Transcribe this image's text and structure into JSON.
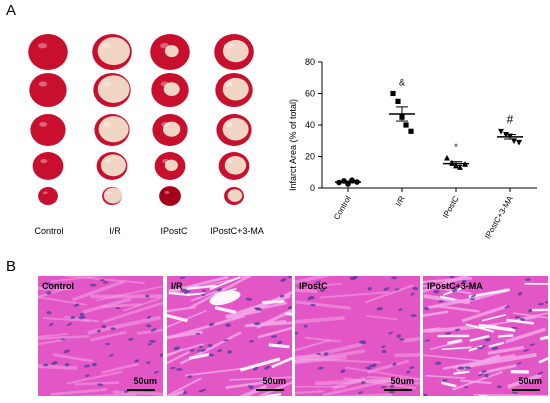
{
  "panels": {
    "a_label": "A",
    "b_label": "B"
  },
  "heart_sections": {
    "groups": [
      "Control",
      "I/R",
      "IPostC",
      "IPostC+3-MA"
    ],
    "rows": 5,
    "colors": {
      "healthy_red": "#c8102e",
      "infarct_pale": "#f3e6d2",
      "background": "#ffffff"
    }
  },
  "chart_data": {
    "type": "scatter",
    "ylabel": "Infarct Area (% of total)",
    "xlabel": "",
    "ylim": [
      0,
      80
    ],
    "yticks": [
      0,
      20,
      40,
      60,
      80
    ],
    "categories": [
      "Control",
      "I/R",
      "IPostC",
      "IPostC+3-MA"
    ],
    "significance": [
      "",
      "&",
      "*",
      "#"
    ],
    "markers": [
      "circle",
      "square",
      "triangle",
      "triangle-down"
    ],
    "points": [
      [
        3.5,
        4.5,
        2.5,
        5,
        3.8
      ],
      [
        60,
        55,
        45,
        40,
        36
      ],
      [
        19,
        16,
        14,
        13,
        15
      ],
      [
        36,
        34,
        33,
        30,
        29
      ]
    ],
    "means": [
      3.8,
      47,
      15.5,
      32.5
    ],
    "sem": [
      0.6,
      4.5,
      1.2,
      1.4
    ],
    "grid": false
  },
  "histology": {
    "panels": [
      {
        "label": "Control",
        "scale": "50um"
      },
      {
        "label": "I/R",
        "scale": "50um"
      },
      {
        "label": "IPostC",
        "scale": "50um"
      },
      {
        "label": "IPostC+3-MA",
        "scale": "50um"
      }
    ],
    "colors": {
      "tissue_pink": "#e256c6",
      "light_pink": "#f2a6e6",
      "nuclei": "#5a3fa0"
    }
  }
}
